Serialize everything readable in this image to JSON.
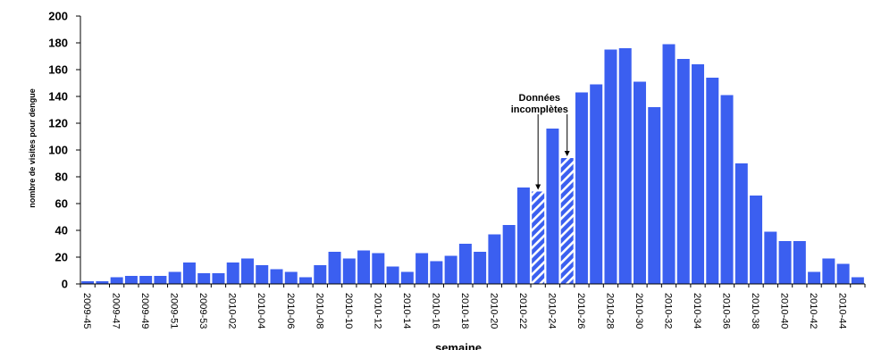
{
  "chart_data": {
    "type": "bar",
    "xlabel": "semaine",
    "ylabel": "nombre de visites pour dengue",
    "ylim": [
      0,
      200
    ],
    "yticks": [
      0,
      20,
      40,
      60,
      80,
      100,
      120,
      140,
      160,
      180,
      200
    ],
    "grid": false,
    "colors": {
      "bar": "#3b5ff0",
      "hatch_stripe": "#ffffff",
      "axis": "#000000"
    },
    "categories": [
      "2009-45",
      "2009-46",
      "2009-47",
      "2009-48",
      "2009-49",
      "2009-50",
      "2009-51",
      "2009-52",
      "2009-53",
      "2010-01",
      "2010-02",
      "2010-03",
      "2010-04",
      "2010-05",
      "2010-06",
      "2010-07",
      "2010-08",
      "2010-09",
      "2010-10",
      "2010-11",
      "2010-12",
      "2010-13",
      "2010-14",
      "2010-15",
      "2010-16",
      "2010-17",
      "2010-18",
      "2010-19",
      "2010-20",
      "2010-21",
      "2010-22",
      "2010-23",
      "2010-24",
      "2010-25",
      "2010-26",
      "2010-27",
      "2010-28",
      "2010-29",
      "2010-30",
      "2010-31",
      "2010-32",
      "2010-33",
      "2010-34",
      "2010-35",
      "2010-36",
      "2010-37",
      "2010-38",
      "2010-39",
      "2010-40",
      "2010-41",
      "2010-42",
      "2010-43",
      "2010-44",
      "2010-45"
    ],
    "tick_labels": [
      "2009-45",
      "2009-47",
      "2009-49",
      "2009-51",
      "2009-53",
      "2010-02",
      "2010-04",
      "2010-06",
      "2010-08",
      "2010-10",
      "2010-12",
      "2010-14",
      "2010-16",
      "2010-18",
      "2010-20",
      "2010-22",
      "2010-24",
      "2010-26",
      "2010-28",
      "2010-30",
      "2010-32",
      "2010-34",
      "2010-36",
      "2010-38",
      "2010-40",
      "2010-42",
      "2010-44"
    ],
    "values": [
      2,
      2,
      5,
      6,
      6,
      6,
      9,
      16,
      8,
      8,
      16,
      19,
      14,
      11,
      9,
      5,
      14,
      24,
      19,
      25,
      23,
      13,
      9,
      23,
      17,
      21,
      30,
      24,
      37,
      44,
      72,
      69,
      116,
      94,
      143,
      149,
      175,
      176,
      151,
      132,
      179,
      168,
      164,
      154,
      141,
      90,
      66,
      39,
      32,
      32,
      9,
      19,
      15,
      5
    ],
    "incomplete_categories": [
      "2010-23",
      "2010-25"
    ],
    "annotations": [
      {
        "text_lines": [
          "Données",
          "incomplètes"
        ],
        "targets": [
          "2010-23",
          "2010-25"
        ]
      }
    ]
  }
}
